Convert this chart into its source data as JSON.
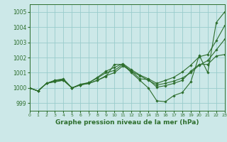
{
  "title": "Graphe pression niveau de la mer (hPa)",
  "bg_color": "#cce8e8",
  "grid_color": "#99cccc",
  "line_color": "#2d6e2d",
  "xlim": [
    0,
    23
  ],
  "ylim": [
    998.5,
    1005.5
  ],
  "xticks": [
    0,
    1,
    2,
    3,
    4,
    5,
    6,
    7,
    8,
    9,
    10,
    11,
    12,
    13,
    14,
    15,
    16,
    17,
    18,
    19,
    20,
    21,
    22,
    23
  ],
  "yticks": [
    999,
    1000,
    1001,
    1002,
    1003,
    1004,
    1005
  ],
  "series": [
    [
      1000.0,
      999.8,
      1000.3,
      1000.4,
      1000.5,
      1000.0,
      1000.2,
      1000.3,
      1000.5,
      1000.75,
      1001.55,
      1001.55,
      1001.0,
      1000.5,
      1000.0,
      999.15,
      999.1,
      999.5,
      999.7,
      1000.4,
      1002.15,
      1001.0,
      1004.3,
      1005.0
    ],
    [
      1000.0,
      999.8,
      1000.3,
      1000.45,
      1000.5,
      1000.0,
      1000.2,
      1000.3,
      1000.5,
      1000.8,
      1001.0,
      1001.45,
      1001.1,
      1000.8,
      1000.5,
      1000.2,
      1000.3,
      1000.45,
      1000.65,
      1001.0,
      1001.5,
      1001.8,
      1002.5,
      1003.2
    ],
    [
      1000.0,
      999.8,
      1000.3,
      1000.5,
      1000.55,
      1000.0,
      1000.2,
      1000.35,
      1000.65,
      1001.0,
      1001.15,
      1001.55,
      1001.1,
      1000.6,
      1000.55,
      1000.05,
      1000.15,
      1000.3,
      1000.5,
      1001.1,
      1001.55,
      1001.55,
      1002.1,
      1002.2
    ],
    [
      1000.0,
      999.8,
      1000.3,
      1000.5,
      1000.6,
      1000.0,
      1000.25,
      1000.35,
      1000.7,
      1001.1,
      1001.35,
      1001.6,
      1001.2,
      1000.85,
      1000.6,
      1000.3,
      1000.5,
      1000.7,
      1001.05,
      1001.5,
      1002.05,
      1002.2,
      1003.1,
      1004.1
    ]
  ]
}
